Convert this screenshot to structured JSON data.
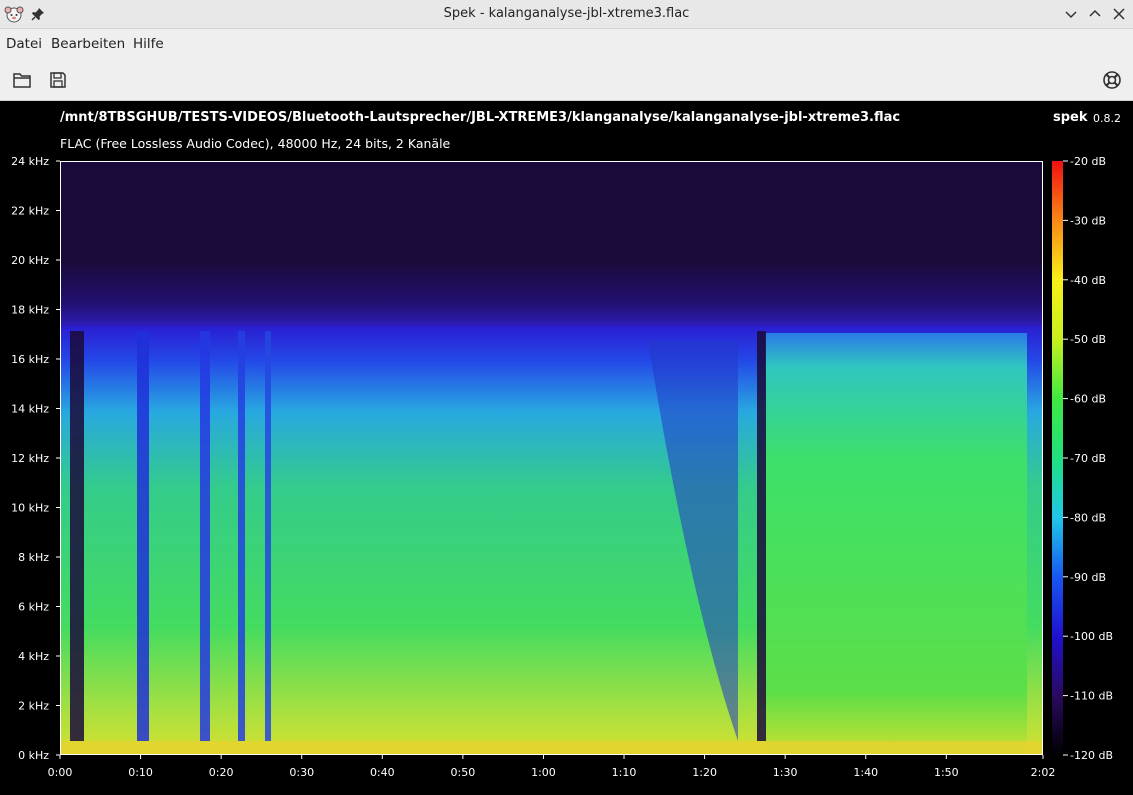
{
  "window": {
    "title": "Spek - kalanganalyse-jbl-xtreme3.flac"
  },
  "menubar": {
    "items": [
      {
        "label": "Datei"
      },
      {
        "label": "Bearbeiten"
      },
      {
        "label": "Hilfe"
      }
    ]
  },
  "toolbar": {
    "open_icon": "folder-open-icon",
    "save_icon": "save-icon",
    "help_icon": "lifebuoy-icon"
  },
  "header": {
    "path": "/mnt/8TBSGHUB/TESTS-VIDEOS/Bluetooth-Lautsprecher/JBL-XTREME3/klanganalyse/kalanganalyse-jbl-xtreme3.flac",
    "info": "FLAC (Free Lossless Audio Codec), 48000 Hz, 24 bits, 2 Kanäle",
    "app_name": "spek",
    "app_version": "0.8.2"
  },
  "chart_data": {
    "type": "heatmap",
    "y_ticks": [
      "0 kHz",
      "2 kHz",
      "4 kHz",
      "6 kHz",
      "8 kHz",
      "10 kHz",
      "12 kHz",
      "14 kHz",
      "16 kHz",
      "18 kHz",
      "20 kHz",
      "22 kHz",
      "24 kHz"
    ],
    "x_ticks": [
      "0:00",
      "0:10",
      "0:20",
      "0:30",
      "0:40",
      "0:50",
      "1:00",
      "1:10",
      "1:20",
      "1:30",
      "1:40",
      "1:50",
      "2:02"
    ],
    "colorbar_ticks": [
      "-20 dB",
      "-30 dB",
      "-40 dB",
      "-50 dB",
      "-60 dB",
      "-70 dB",
      "-80 dB",
      "-90 dB",
      "-100 dB",
      "-110 dB",
      "-120 dB"
    ],
    "ylim_khz": [
      0,
      24
    ],
    "xlim_seconds": [
      0,
      122
    ],
    "colorbar_range_db": [
      -120,
      -20
    ],
    "colors": {
      "dark": "#1a0a3a",
      "blue": "#1f2fe8",
      "cyan": "#22c8e6",
      "green": "#34e05a",
      "yellow": "#e6e82a",
      "red": "#ee3018"
    }
  }
}
